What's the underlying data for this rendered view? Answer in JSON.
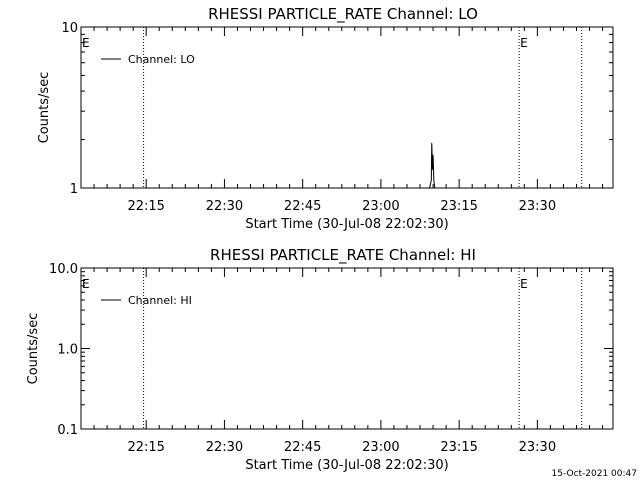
{
  "footer": {
    "timestamp": "15-Oct-2021 00:47"
  },
  "chart_data": [
    {
      "type": "line",
      "title": "RHESSI PARTICLE_RATE Channel: LO",
      "xlabel": "Start Time (30-Jul-08 22:02:30)",
      "ylabel": "Counts/sec",
      "x_unit": "time-of-day",
      "xlim": [
        "22:02:30",
        "23:44:30"
      ],
      "x_tick_labels": [
        "22:15",
        "22:30",
        "22:45",
        "23:00",
        "23:15",
        "23:30"
      ],
      "x_tick_times": [
        "22:15",
        "22:30",
        "22:45",
        "23:00",
        "23:15",
        "23:30"
      ],
      "y_scale": "log",
      "ylim": [
        1,
        10
      ],
      "y_tick_labels": [
        "1",
        "10"
      ],
      "y_tick_values": [
        1,
        10
      ],
      "legend": {
        "position": "top-left",
        "entries": [
          "Channel: LO"
        ]
      },
      "markers": [
        {
          "time": "22:02:30",
          "label": "E",
          "dotted": false
        },
        {
          "time": "22:14:30",
          "label": "",
          "dotted": true
        },
        {
          "time": "23:26:30",
          "label": "E",
          "dotted": true
        },
        {
          "time": "23:38:30",
          "label": "",
          "dotted": true
        }
      ],
      "series": [
        {
          "name": "Channel: LO",
          "color": "#000000",
          "x": [
            "23:09:20",
            "23:09:40",
            "23:09:45",
            "23:09:55",
            "23:10:00",
            "23:10:10",
            "23:10:20",
            "23:10:35"
          ],
          "y": [
            1,
            1.12,
            1.9,
            1.3,
            1.6,
            1.1,
            1,
            1
          ]
        }
      ]
    },
    {
      "type": "line",
      "title": "RHESSI PARTICLE_RATE Channel: HI",
      "xlabel": "Start Time (30-Jul-08 22:02:30)",
      "ylabel": "Counts/sec",
      "x_unit": "time-of-day",
      "xlim": [
        "22:02:30",
        "23:44:30"
      ],
      "x_tick_labels": [
        "22:15",
        "22:30",
        "22:45",
        "23:00",
        "23:15",
        "23:30"
      ],
      "x_tick_times": [
        "22:15",
        "22:30",
        "22:45",
        "23:00",
        "23:15",
        "23:30"
      ],
      "y_scale": "log",
      "ylim": [
        0.1,
        10
      ],
      "y_tick_labels": [
        "0.1",
        "1.0",
        "10.0"
      ],
      "y_tick_values": [
        0.1,
        1,
        10
      ],
      "legend": {
        "position": "top-left",
        "entries": [
          "Channel: HI"
        ]
      },
      "markers": [
        {
          "time": "22:02:30",
          "label": "E",
          "dotted": false
        },
        {
          "time": "22:14:30",
          "label": "",
          "dotted": true
        },
        {
          "time": "23:26:30",
          "label": "E",
          "dotted": true
        },
        {
          "time": "23:38:30",
          "label": "",
          "dotted": true
        }
      ],
      "series": [
        {
          "name": "Channel: HI",
          "color": "#000000",
          "x": [],
          "y": []
        }
      ]
    }
  ]
}
